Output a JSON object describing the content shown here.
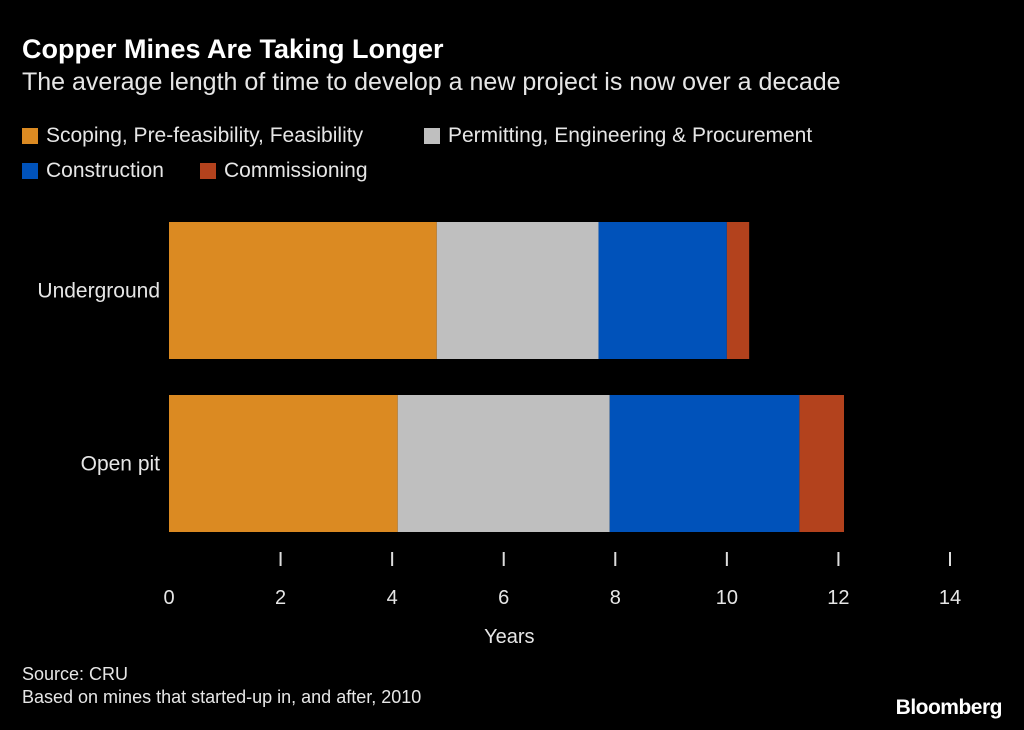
{
  "chart_data": {
    "type": "bar",
    "orientation": "horizontal",
    "stacked": true,
    "title": "Copper Mines Are Taking Longer",
    "subtitle": "The average length of time to develop a new project is now over a decade",
    "categories": [
      "Underground",
      "Open pit"
    ],
    "series": [
      {
        "name": "Scoping, Pre-feasibility, Feasibility",
        "color": "#DB8A22",
        "values": [
          4.8,
          4.1
        ]
      },
      {
        "name": "Permitting, Engineering & Procurement",
        "color": "#BFBFBF",
        "values": [
          2.9,
          3.8
        ]
      },
      {
        "name": "Construction",
        "color": "#0052BA",
        "values": [
          2.3,
          3.4
        ]
      },
      {
        "name": "Commissioning",
        "color": "#B3421D",
        "values": [
          0.4,
          0.8
        ]
      }
    ],
    "xlabel": "Years",
    "xlim": [
      0,
      14
    ],
    "xticks": [
      "0",
      "2",
      "4",
      "6",
      "8",
      "10",
      "12",
      "14"
    ],
    "grid": false,
    "legend_position": "top"
  },
  "footer": {
    "source": "Source: CRU",
    "note": "Based on mines that started-up in, and after, 2010",
    "logo": "Bloomberg"
  }
}
